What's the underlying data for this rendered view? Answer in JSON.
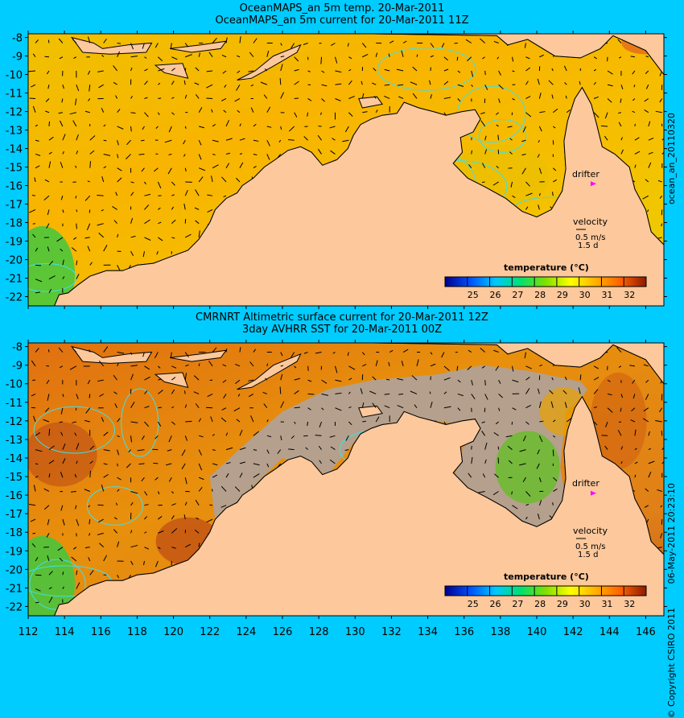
{
  "top_panel": {
    "title_line1": "OceanMAPS_an 5m temp. 20-Mar-2011",
    "title_line2": "OceanMAPS_an 5m current for 20-Mar-2011 11Z",
    "side_label": "ocean_an_20110320",
    "drifter_label": "drifter",
    "velocity_label": "velocity",
    "velocity_scale": "0.5 m/s",
    "velocity_days": "1.5 d",
    "colorbar_title": "temperature (°C)"
  },
  "bottom_panel": {
    "title_line1": "CMRNRT Altimetric surface current for 20-Mar-2011 12Z",
    "title_line2": "3day AVHRR SST for 20-Mar-2011 00Z",
    "side_label": "06-May-2011 20:23:10",
    "copyright": "© Copyright CSIRO 2011",
    "drifter_label": "drifter",
    "velocity_label": "velocity",
    "velocity_scale": "0.5 m/s",
    "velocity_days": "1.5 d",
    "colorbar_title": "temperature (°C)"
  },
  "map": {
    "lon_ticks": [
      "112",
      "114",
      "116",
      "118",
      "120",
      "122",
      "124",
      "126",
      "128",
      "130",
      "132",
      "134",
      "136",
      "138",
      "140",
      "142",
      "144",
      "146"
    ],
    "lon_range": [
      112,
      147
    ],
    "lat_ticks": [
      "-8",
      "-9",
      "-10",
      "-11",
      "-12",
      "-13",
      "-14",
      "-15",
      "-16",
      "-17",
      "-18",
      "-19",
      "-20",
      "-21",
      "-22"
    ],
    "lat_range": [
      -22.5,
      -7.8
    ],
    "drifter_position": [
      143.1,
      -15.9
    ]
  },
  "colorbar": {
    "ticks": [
      "25",
      "26",
      "27",
      "28",
      "29",
      "30",
      "31",
      "32"
    ],
    "range": [
      24,
      33
    ],
    "colors": [
      "#00008b",
      "#0050ff",
      "#00c8ff",
      "#00e070",
      "#80e000",
      "#ffff00",
      "#ffb000",
      "#ff6000",
      "#8b1a00"
    ]
  },
  "colors": {
    "background": "#00ccff",
    "land": "#fcc89c",
    "shelf": "#b4a08c",
    "coast": "#000000",
    "contour": "#40e0e8",
    "drifter": "#ff00ff"
  }
}
